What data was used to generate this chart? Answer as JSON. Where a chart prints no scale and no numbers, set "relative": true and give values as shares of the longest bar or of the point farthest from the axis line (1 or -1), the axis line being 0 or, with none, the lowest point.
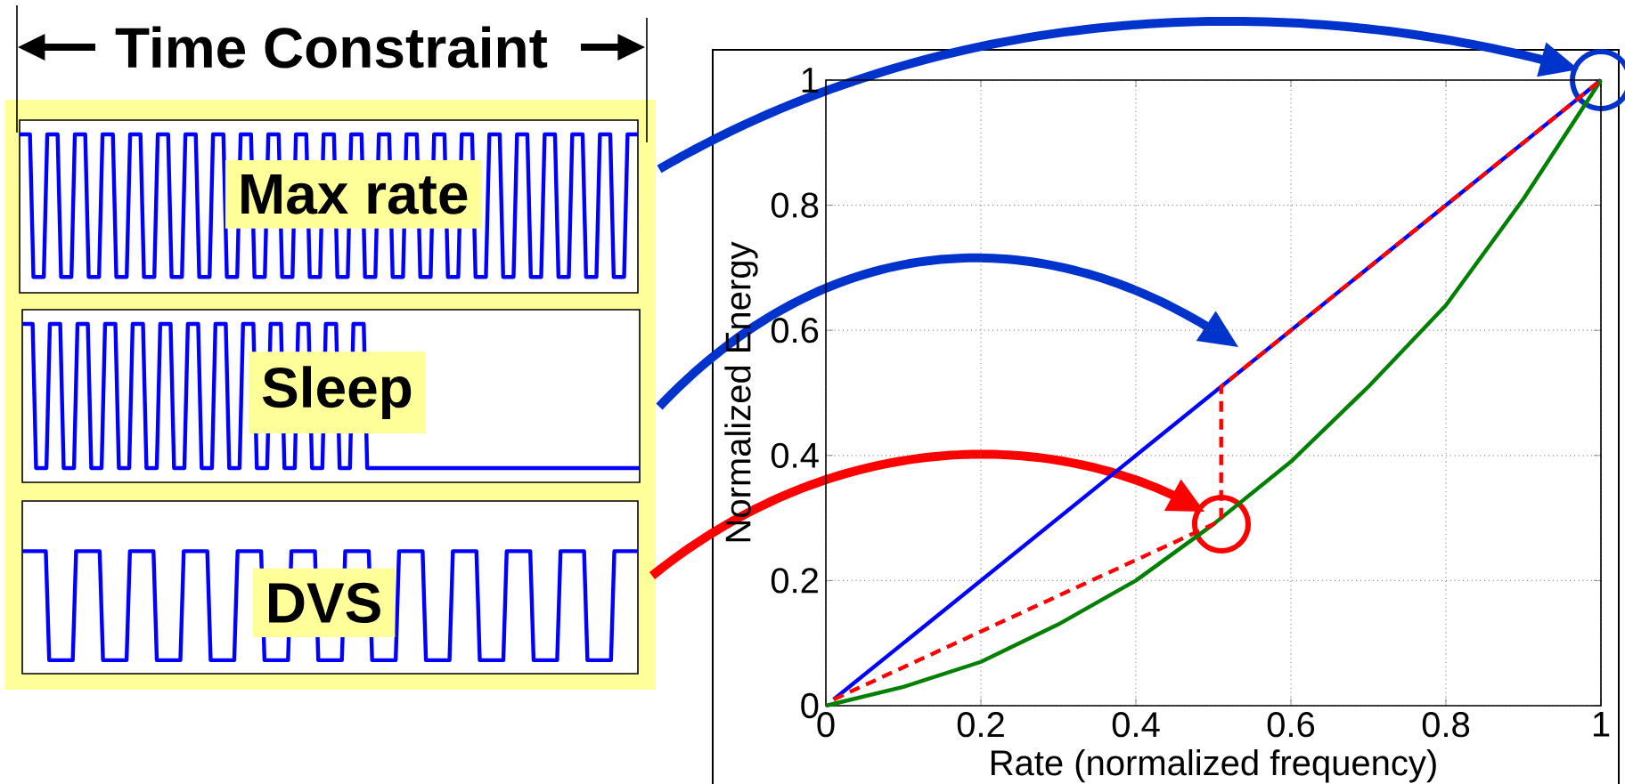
{
  "chart_data": [
    {
      "type": "line",
      "title": "Time Constraint",
      "relative": true,
      "color": "#0000ff",
      "annotations": [
        "Max rate"
      ],
      "categories": [
        null,
        null,
        null,
        null,
        null,
        null,
        null,
        null,
        null,
        null,
        null,
        null,
        null,
        null,
        null,
        null,
        null,
        null,
        null,
        null,
        null,
        null,
        null,
        null,
        null,
        null,
        null,
        null,
        null,
        null,
        null,
        null,
        null,
        null,
        null,
        null,
        null,
        null,
        null,
        null,
        null,
        null,
        null,
        null,
        null,
        null,
        null,
        null,
        null,
        null,
        null,
        null,
        null,
        null,
        null,
        null,
        null,
        null,
        null,
        null,
        null,
        null,
        null,
        null,
        null,
        null,
        null,
        null,
        null,
        null,
        null,
        null,
        null,
        null,
        null,
        null,
        null,
        null,
        null,
        null,
        null,
        null,
        null,
        null,
        null,
        null,
        null,
        null,
        null,
        null,
        null,
        null,
        null,
        null,
        null,
        null,
        null,
        null,
        null,
        null,
        null,
        null,
        null,
        null,
        null,
        null,
        null,
        null,
        null,
        null,
        null,
        null,
        null,
        null,
        null,
        null,
        null,
        null,
        null,
        null,
        null,
        null,
        null,
        null,
        null,
        null,
        null,
        null,
        null,
        null,
        null,
        null,
        null,
        null,
        null,
        null,
        null,
        null,
        null,
        null,
        null,
        null,
        null,
        null,
        null,
        null,
        null,
        null,
        null,
        null,
        null,
        null,
        null,
        null,
        null,
        null,
        null,
        null,
        null,
        null,
        null,
        null,
        null,
        null,
        null,
        null,
        null,
        null,
        null,
        null,
        null,
        null,
        null,
        null,
        null,
        null,
        null,
        null,
        null,
        null
      ],
      "values": [
        1,
        1,
        1,
        1,
        0.1,
        0.1,
        0.1,
        0.1,
        1,
        1,
        1,
        1,
        0.1,
        0.1,
        0.1,
        0.1,
        1,
        1,
        1,
        1,
        0.1,
        0.1,
        0.1,
        0.1,
        1,
        1,
        1,
        1,
        0.1,
        0.1,
        0.1,
        0.1,
        1,
        1,
        1,
        1,
        0.1,
        0.1,
        0.1,
        0.1,
        1,
        1,
        1,
        1,
        0.1,
        0.1,
        0.1,
        0.1,
        1,
        1,
        1,
        1,
        0.1,
        0.1,
        0.1,
        0.1,
        1,
        1,
        1,
        1,
        0.1,
        0.1,
        0.1,
        0.1,
        1,
        1,
        1,
        1,
        0.1,
        0.1,
        0.1,
        0.1,
        1,
        1,
        1,
        1,
        0.1,
        0.1,
        0.1,
        0.1,
        1,
        1,
        1,
        1,
        0.1,
        0.1,
        0.1,
        0.1,
        1,
        1,
        1,
        1,
        0.1,
        0.1,
        0.1,
        0.1,
        1,
        1,
        1,
        1,
        0.1,
        0.1,
        0.1,
        0.1,
        1,
        1,
        1,
        1,
        0.1,
        0.1,
        0.1,
        0.1,
        1,
        1,
        1,
        1,
        0.1,
        0.1,
        0.1,
        0.1,
        1,
        1,
        1,
        1,
        0.1,
        0.1,
        0.1,
        0.1,
        1,
        1,
        1,
        1,
        0.1,
        0.1,
        0.1,
        0.1,
        1,
        1,
        1,
        1,
        0.1,
        0.1,
        0.1,
        0.1,
        1,
        1,
        1,
        1,
        0.1,
        0.1,
        0.1,
        0.1,
        1,
        1,
        1,
        1,
        0.1,
        0.1,
        0.1,
        0.1,
        1,
        1,
        1,
        1,
        0.1,
        0.1,
        0.1,
        0.1,
        1,
        1,
        1,
        1,
        0.1,
        0.1,
        0.1,
        0.1,
        1,
        1,
        1,
        1
      ]
    },
    {
      "type": "line",
      "relative": true,
      "color": "#0000ff",
      "annotations": [
        "Sleep"
      ],
      "categories": [
        null,
        null,
        null,
        null,
        null,
        null,
        null,
        null,
        null,
        null,
        null,
        null,
        null,
        null,
        null,
        null,
        null,
        null,
        null,
        null,
        null,
        null,
        null,
        null,
        null,
        null,
        null,
        null,
        null,
        null,
        null,
        null,
        null,
        null,
        null,
        null,
        null,
        null,
        null,
        null,
        null,
        null,
        null,
        null,
        null,
        null,
        null,
        null,
        null,
        null,
        null,
        null,
        null,
        null,
        null,
        null,
        null,
        null,
        null,
        null,
        null,
        null,
        null,
        null,
        null,
        null,
        null,
        null,
        null,
        null,
        null,
        null,
        null,
        null,
        null,
        null,
        null,
        null,
        null,
        null,
        null,
        null,
        null,
        null,
        null,
        null,
        null,
        null,
        null,
        null,
        null,
        null,
        null,
        null,
        null,
        null,
        null,
        null,
        null,
        null,
        null,
        null,
        null,
        null,
        null,
        null,
        null,
        null,
        null,
        null,
        null,
        null,
        null,
        null,
        null,
        null,
        null,
        null,
        null,
        null,
        null,
        null,
        null,
        null,
        null,
        null,
        null,
        null,
        null,
        null,
        null,
        null,
        null,
        null,
        null,
        null,
        null,
        null,
        null,
        null,
        null,
        null,
        null,
        null,
        null,
        null,
        null,
        null,
        null,
        null,
        null,
        null,
        null,
        null,
        null,
        null,
        null,
        null,
        null,
        null,
        null,
        null,
        null,
        null,
        null,
        null,
        null,
        null,
        null,
        null,
        null,
        null,
        null,
        null,
        null,
        null,
        null,
        null,
        null,
        null
      ],
      "values": [
        1,
        1,
        1,
        1,
        0.09,
        0.09,
        0.09,
        0.09,
        1,
        1,
        1,
        1,
        0.09,
        0.09,
        0.09,
        0.09,
        1,
        1,
        1,
        1,
        0.09,
        0.09,
        0.09,
        0.09,
        1,
        1,
        1,
        1,
        0.09,
        0.09,
        0.09,
        0.09,
        1,
        1,
        1,
        1,
        0.09,
        0.09,
        0.09,
        0.09,
        1,
        1,
        1,
        1,
        0.09,
        0.09,
        0.09,
        0.09,
        1,
        1,
        1,
        1,
        0.09,
        0.09,
        0.09,
        0.09,
        1,
        1,
        1,
        1,
        0.09,
        0.09,
        0.09,
        0.09,
        1,
        1,
        1,
        1,
        0.09,
        0.09,
        0.09,
        0.09,
        1,
        1,
        1,
        1,
        0.09,
        0.09,
        0.09,
        0.09,
        1,
        1,
        1,
        1,
        0.09,
        0.09,
        0.09,
        0.09,
        1,
        1,
        1,
        1,
        0.09,
        0.09,
        0.09,
        0.09,
        1,
        1,
        1,
        1,
        0.09,
        0.09,
        0.09,
        0.09,
        0.09,
        0.09,
        0.09,
        0.09,
        0.09,
        0.09,
        0.09,
        0.09,
        0.09,
        0.09,
        0.09,
        0.09,
        0.09,
        0.09,
        0.09,
        0.09,
        0.09,
        0.09,
        0.09,
        0.09,
        0.09,
        0.09,
        0.09,
        0.09,
        0.09,
        0.09,
        0.09,
        0.09,
        0.09,
        0.09,
        0.09,
        0.09,
        0.09,
        0.09,
        0.09,
        0.09,
        0.09,
        0.09,
        0.09,
        0.09,
        0.09,
        0.09,
        0.09,
        0.09,
        0.09,
        0.09,
        0.09,
        0.09,
        0.09,
        0.09,
        0.09,
        0.09,
        0.09,
        0.09,
        0.09,
        0.09,
        0.09,
        0.09,
        0.09,
        0.09,
        0.09,
        0.09,
        0.09,
        0.09,
        0.09,
        0.09,
        0.09,
        0.09,
        0.09,
        0.09,
        0.09,
        0.09,
        0.09,
        0.09,
        0.09,
        0.09
      ]
    },
    {
      "type": "line",
      "relative": true,
      "color": "#0000ff",
      "annotations": [
        "DVS"
      ],
      "categories": [
        null,
        null,
        null,
        null,
        null,
        null,
        null,
        null,
        null,
        null,
        null,
        null,
        null,
        null,
        null,
        null,
        null,
        null,
        null,
        null,
        null,
        null,
        null,
        null,
        null,
        null,
        null,
        null,
        null,
        null,
        null,
        null,
        null,
        null,
        null,
        null,
        null,
        null,
        null,
        null,
        null,
        null,
        null,
        null,
        null,
        null,
        null,
        null,
        null,
        null,
        null,
        null,
        null,
        null,
        null,
        null,
        null,
        null,
        null,
        null,
        null,
        null,
        null,
        null,
        null,
        null,
        null,
        null,
        null,
        null,
        null,
        null,
        null,
        null,
        null,
        null,
        null,
        null,
        null,
        null,
        null,
        null,
        null,
        null,
        null,
        null,
        null,
        null,
        null,
        null,
        null,
        null,
        null,
        null,
        null,
        null,
        null,
        null,
        null,
        null,
        null,
        null,
        null,
        null,
        null,
        null,
        null,
        null,
        null,
        null,
        null,
        null,
        null,
        null,
        null,
        null,
        null,
        null,
        null,
        null,
        null,
        null,
        null,
        null,
        null,
        null,
        null,
        null,
        null,
        null,
        null,
        null,
        null,
        null,
        null,
        null,
        null,
        null,
        null,
        null,
        null,
        null,
        null,
        null,
        null,
        null,
        null,
        null,
        null,
        null,
        null,
        null,
        null,
        null,
        null,
        null,
        null,
        null,
        null,
        null,
        null,
        null,
        null,
        null,
        null,
        null,
        null,
        null,
        null,
        null,
        null,
        null,
        null,
        null,
        null,
        null,
        null,
        null,
        null,
        null,
        null,
        null,
        null,
        null
      ],
      "values": [
        1,
        1,
        1,
        1,
        1,
        1,
        1,
        1,
        0.11,
        0.11,
        0.11,
        0.11,
        0.11,
        0.11,
        0.11,
        0.11,
        1,
        1,
        1,
        1,
        1,
        1,
        1,
        1,
        0.11,
        0.11,
        0.11,
        0.11,
        0.11,
        0.11,
        0.11,
        0.11,
        1,
        1,
        1,
        1,
        1,
        1,
        1,
        1,
        0.11,
        0.11,
        0.11,
        0.11,
        0.11,
        0.11,
        0.11,
        0.11,
        1,
        1,
        1,
        1,
        1,
        1,
        1,
        1,
        0.11,
        0.11,
        0.11,
        0.11,
        0.11,
        0.11,
        0.11,
        0.11,
        1,
        1,
        1,
        1,
        1,
        1,
        1,
        1,
        0.11,
        0.11,
        0.11,
        0.11,
        0.11,
        0.11,
        0.11,
        0.11,
        1,
        1,
        1,
        1,
        1,
        1,
        1,
        1,
        0.11,
        0.11,
        0.11,
        0.11,
        0.11,
        0.11,
        0.11,
        0.11,
        1,
        1,
        1,
        1,
        1,
        1,
        1,
        1,
        0.11,
        0.11,
        0.11,
        0.11,
        0.11,
        0.11,
        0.11,
        0.11,
        1,
        1,
        1,
        1,
        1,
        1,
        1,
        1,
        0.11,
        0.11,
        0.11,
        0.11,
        0.11,
        0.11,
        0.11,
        0.11,
        1,
        1,
        1,
        1,
        1,
        1,
        1,
        1,
        0.11,
        0.11,
        0.11,
        0.11,
        0.11,
        0.11,
        0.11,
        0.11,
        1,
        1,
        1,
        1,
        1,
        1,
        1,
        1,
        0.11,
        0.11,
        0.11,
        0.11,
        0.11,
        0.11,
        0.11,
        0.11,
        1,
        1,
        1,
        1,
        1,
        1,
        1,
        1,
        0.11,
        0.11,
        0.11,
        0.11,
        0.11,
        0.11,
        0.11,
        0.11,
        1,
        1,
        1,
        1,
        1,
        1,
        1,
        1
      ]
    },
    {
      "type": "line",
      "xlabel": "Rate (normalized frequency)",
      "ylabel": "Normalized Energy",
      "xlim": [
        0,
        1
      ],
      "ylim": [
        0,
        1
      ],
      "xticks": [
        0,
        0.2,
        0.4,
        0.6,
        0.8,
        1
      ],
      "yticks": [
        0,
        0.2,
        0.4,
        0.6,
        0.8,
        1
      ],
      "grid": true,
      "series": [
        {
          "color": "#0000ff",
          "x": [
            0.01,
            1
          ],
          "values": [
            0.01,
            1
          ]
        },
        {
          "color": "#008000",
          "x": [
            0,
            0.1,
            0.2,
            0.3,
            0.4,
            0.5,
            0.6,
            0.7,
            0.8,
            0.9,
            1
          ],
          "values": [
            0,
            0.03,
            0.07,
            0.13,
            0.2,
            0.29,
            0.39,
            0.51,
            0.64,
            0.81,
            1
          ]
        },
        {
          "color": "#ff0000",
          "line_style": "dashed",
          "x": [
            0.01,
            0.5,
            0.51,
            0.51,
            1
          ],
          "values": [
            0.01,
            0.29,
            0.3,
            0.51,
            1
          ]
        }
      ]
    }
  ]
}
